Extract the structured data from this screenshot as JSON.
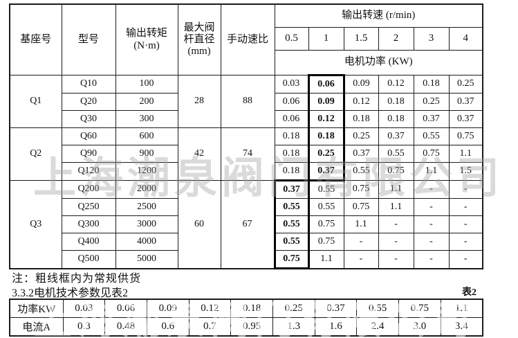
{
  "header": {
    "base_col": "基座号",
    "model_col": "型号",
    "torque_col": "输出转矩\n(N·m)",
    "stem_col": "最大阀\n杆直径\n(mm)",
    "ratio_col": "手动速比",
    "speed_group": "输出转速 (r/min)",
    "speed_cols": [
      "0.5",
      "1",
      "1.5",
      "2",
      "3",
      "4"
    ],
    "power_group": "电机功率 (KW)"
  },
  "groups": [
    {
      "base": "Q1",
      "stem": "28",
      "ratio": "88",
      "rows": [
        {
          "model": "Q10",
          "torque": "100",
          "powers": [
            "0.03",
            "0.06",
            "0.09",
            "0.12",
            "0.18",
            "0.25"
          ]
        },
        {
          "model": "Q20",
          "torque": "200",
          "powers": [
            "0.06",
            "0.09",
            "0.12",
            "0.18",
            "0.25",
            "0.37"
          ]
        },
        {
          "model": "Q30",
          "torque": "300",
          "powers": [
            "0.06",
            "0.12",
            "0.18",
            "0.18",
            "0.37",
            "0.37"
          ]
        }
      ]
    },
    {
      "base": "Q2",
      "stem": "42",
      "ratio": "74",
      "rows": [
        {
          "model": "Q60",
          "torque": "600",
          "powers": [
            "0.18",
            "0.18",
            "0.25",
            "0.37",
            "0.55",
            "0.75"
          ]
        },
        {
          "model": "Q90",
          "torque": "900",
          "powers": [
            "0.18",
            "0.25",
            "0.37",
            "0.55",
            "0.75",
            "1.1"
          ]
        },
        {
          "model": "Q120",
          "torque": "1200",
          "powers": [
            "0.18",
            "0.37",
            "0.55",
            "0.75",
            "1.1",
            "1.5"
          ]
        }
      ]
    },
    {
      "base": "Q3",
      "stem": "60",
      "ratio": "67",
      "rows": [
        {
          "model": "Q200",
          "torque": "2000",
          "powers": [
            "0.37",
            "0.55",
            "0.75",
            "1.1",
            "-",
            "-"
          ]
        },
        {
          "model": "Q250",
          "torque": "2500",
          "powers": [
            "0.55",
            "0.55",
            "0.75",
            "1.1",
            "-",
            "-"
          ]
        },
        {
          "model": "Q300",
          "torque": "3000",
          "powers": [
            "0.55",
            "0.75",
            "1.1",
            "-",
            "-",
            "-"
          ]
        },
        {
          "model": "Q400",
          "torque": "4000",
          "powers": [
            "0.55",
            "0.75",
            "-",
            "-",
            "-",
            "-"
          ]
        },
        {
          "model": "Q500",
          "torque": "5000",
          "powers": [
            "0.75",
            "1.1",
            "-",
            "-",
            "-",
            "-"
          ]
        }
      ]
    }
  ],
  "regular_supply_boxes": [
    {
      "power_col": 1,
      "from_row": 0,
      "to_row": 5
    },
    {
      "power_col": 0,
      "from_row": 6,
      "to_row": 10
    }
  ],
  "notes": {
    "line1": "注：粗线框内为常规供货",
    "line2": "3.3.2电机技术参数见表2",
    "table2_label": "表2"
  },
  "table2": {
    "rows": [
      {
        "label": "功率KW",
        "values": [
          "0.03",
          "0.06",
          "0.09",
          "0.12",
          "0.18",
          "0.25",
          "0.37",
          "0.55",
          "0.75",
          "1.1"
        ]
      },
      {
        "label": "电流A",
        "values": [
          "0.3",
          "0.48",
          "0.6",
          "0.7",
          "0.95",
          "1.3",
          "1.6",
          "2.4",
          "3.0",
          "3.4"
        ]
      }
    ]
  },
  "watermark": "上海潮泉阀门有限公司",
  "colors": {
    "line": "#1a1a1a",
    "watermark_gray": "#9e9e9e"
  }
}
